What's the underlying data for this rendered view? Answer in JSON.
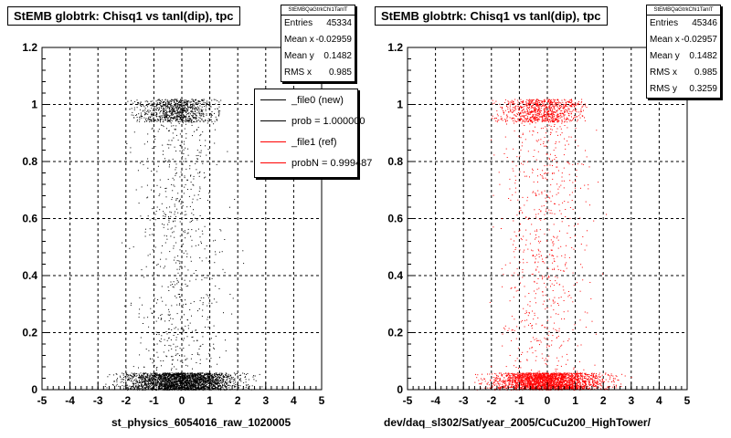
{
  "chart_data": [
    {
      "type": "scatter",
      "title": "StEMB globtrk: Chisq1 vs tanl(dip), tpc",
      "xlabel": "st_physics_6054016_raw_1020005",
      "ylabel": "",
      "xlim": [
        -5,
        5
      ],
      "ylim": [
        0,
        1.2
      ],
      "x_ticks": [
        "-5",
        "-4",
        "-3",
        "-2",
        "-1",
        "0",
        "1",
        "2",
        "3",
        "4",
        "5"
      ],
      "y_ticks": [
        "0",
        "0.2",
        "0.4",
        "0.6",
        "0.8",
        "1",
        "1.2"
      ],
      "grid": true,
      "marker_color": "#000000",
      "stats": {
        "name": "StEMBQaGtrkChi1TanlT",
        "rows": [
          {
            "label": "Entries",
            "value": "45334"
          },
          {
            "label": "Mean x",
            "value": "-0.02959"
          },
          {
            "label": "Mean y",
            "value": "0.1482"
          },
          {
            "label": "RMS x",
            "value": "0.985"
          }
        ]
      },
      "legend": {
        "placement": "top-right",
        "entries": [
          {
            "label": "_file0 (new)",
            "color": "#000000"
          },
          {
            "label": "prob = 1.000000",
            "color": "#000000"
          },
          {
            "label": "_file1 (ref)",
            "color": "#ff0000"
          },
          {
            "label": "probN = 0.999487",
            "color": "#ff0000"
          }
        ]
      },
      "density_bands": [
        {
          "y": [
            0.0,
            0.06
          ],
          "x_range": [
            -2.5,
            2.5
          ],
          "relative_density": "very high"
        },
        {
          "y": [
            0.94,
            1.02
          ],
          "x_range": [
            -1.5,
            1.0
          ],
          "relative_density": "high"
        },
        {
          "y": [
            0.06,
            0.94
          ],
          "x_range": [
            -2.0,
            2.0
          ],
          "relative_density": "sparse"
        }
      ]
    },
    {
      "type": "scatter",
      "title": "StEMB globtrk: Chisq1 vs tanl(dip), tpc",
      "xlabel": "dev/daq_sl302/Sat/year_2005/CuCu200_HighTower/",
      "ylabel": "",
      "xlim": [
        -5,
        5
      ],
      "ylim": [
        0,
        1.2
      ],
      "x_ticks": [
        "-5",
        "-4",
        "-3",
        "-2",
        "-1",
        "0",
        "1",
        "2",
        "3",
        "4",
        "5"
      ],
      "y_ticks": [
        "0",
        "0.2",
        "0.4",
        "0.6",
        "0.8",
        "1",
        "1.2"
      ],
      "grid": true,
      "marker_color": "#ff0000",
      "stats": {
        "name": "StEMBQaGtrkChi1TanlT",
        "rows": [
          {
            "label": "Entries",
            "value": "45346"
          },
          {
            "label": "Mean x",
            "value": "-0.02957"
          },
          {
            "label": "Mean y",
            "value": "0.1482"
          },
          {
            "label": "RMS x",
            "value": "0.985"
          },
          {
            "label": "RMS y",
            "value": "0.3259"
          }
        ]
      },
      "density_bands": [
        {
          "y": [
            0.0,
            0.06
          ],
          "x_range": [
            -2.5,
            2.5
          ],
          "relative_density": "very high"
        },
        {
          "y": [
            0.94,
            1.02
          ],
          "x_range": [
            -1.5,
            1.0
          ],
          "relative_density": "high"
        },
        {
          "y": [
            0.06,
            0.94
          ],
          "x_range": [
            -2.0,
            2.0
          ],
          "relative_density": "sparse"
        }
      ]
    }
  ]
}
